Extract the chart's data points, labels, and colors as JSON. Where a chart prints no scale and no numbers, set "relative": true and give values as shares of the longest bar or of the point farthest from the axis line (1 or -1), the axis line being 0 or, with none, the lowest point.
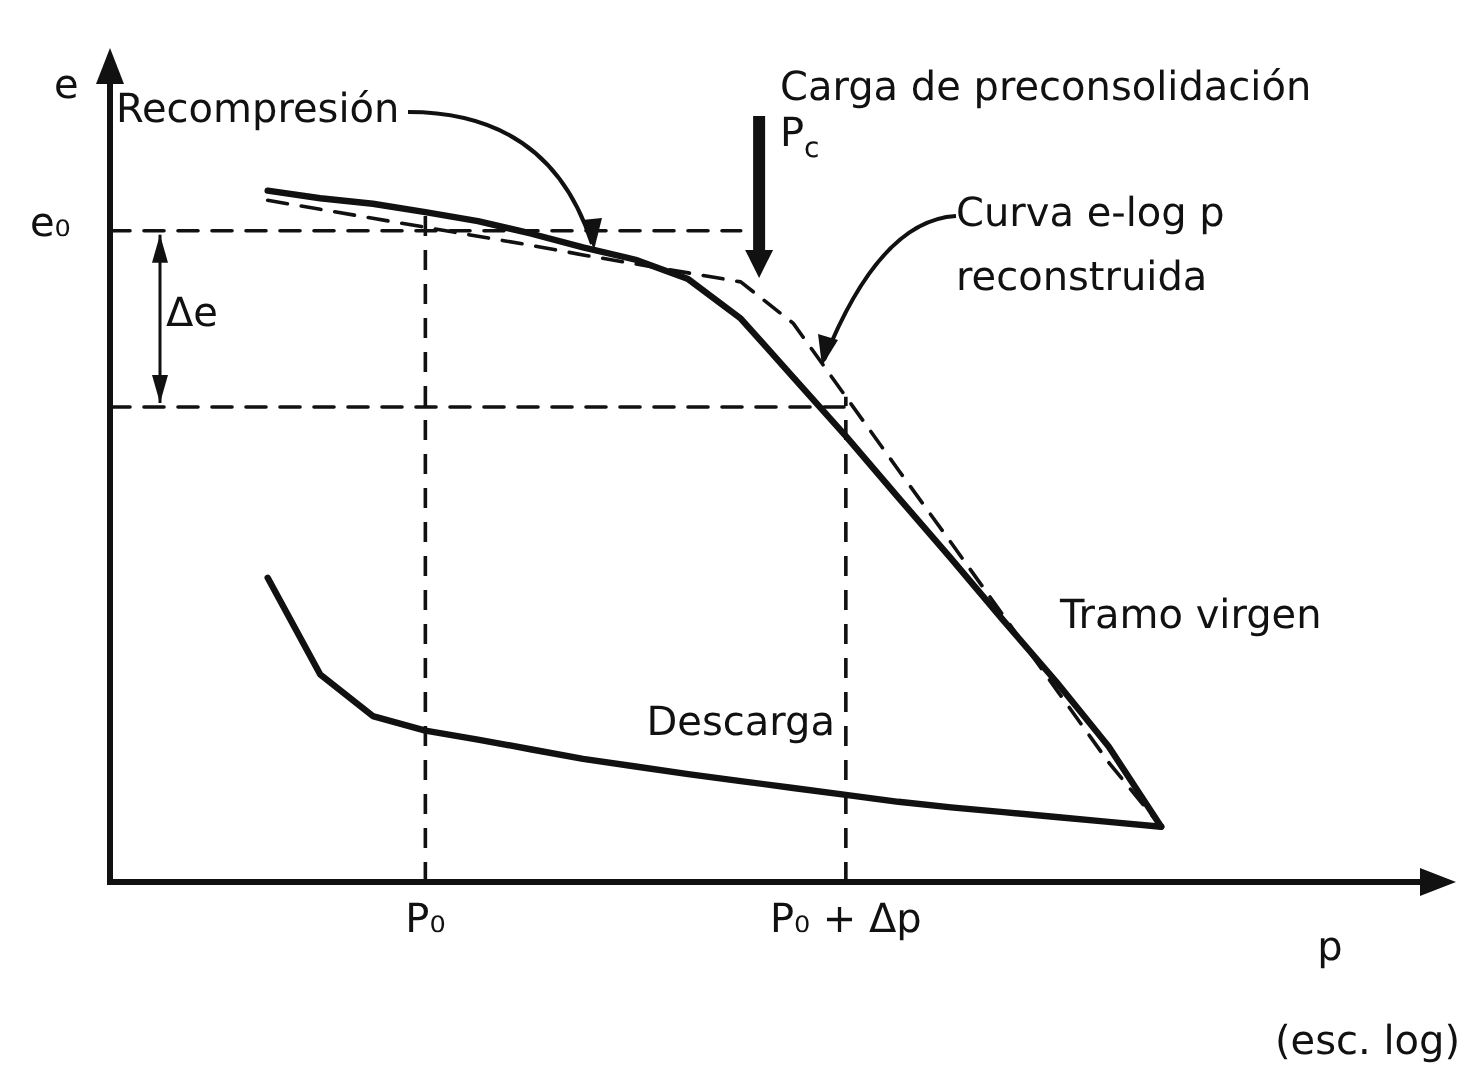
{
  "chart_data": {
    "type": "line",
    "relative": true,
    "ylabel": "e",
    "xlabel": "p",
    "annotations": [
      "Recompresión",
      "Carga de preconsolidación",
      "P$_{c}$",
      "Curva e-log p reconstruida",
      "Tramo virgen",
      "Δe",
      "e₀",
      "(esc. log)"
    ],
    "categories": [
      null,
      null,
      null,
      null,
      null,
      null,
      "P₀",
      null,
      null,
      null,
      null,
      null,
      null,
      null,
      "P₀ + Δp",
      null,
      null,
      null,
      null,
      null,
      null,
      null,
      null,
      null,
      null,
      null
    ],
    "grid": false,
    "legend": false,
    "marker": "none",
    "line_style": "solid",
    "ref_lines": [
      {
        "axis": "x",
        "value": "P₀",
        "line_style": "dashed",
        "color": "#111111"
      },
      {
        "axis": "x",
        "value": "P₀ + Δp",
        "line_style": "dashed",
        "color": "#111111"
      }
    ],
    "series": [
      {
        "color": "#111111",
        "values": [
          null,
          null,
          null,
          1.0,
          0.989,
          0.981,
          0.969,
          0.956,
          0.938,
          0.918,
          0.9,
          0.872,
          0.815,
          0.73,
          0.645,
          0.556,
          0.468,
          0.378,
          0.29,
          0.196,
          0.08,
          null,
          null,
          null,
          null,
          null
        ]
      },
      {
        "name": "Descarga",
        "color": "#111111",
        "values": [
          null,
          null,
          null,
          0.44,
          0.3,
          0.24,
          0.219,
          0.206,
          0.192,
          0.178,
          0.167,
          0.156,
          0.146,
          0.136,
          0.126,
          0.116,
          0.108,
          0.101,
          0.094,
          0.087,
          0.08,
          null,
          null,
          null,
          null,
          null
        ]
      },
      {
        "color": "#111111",
        "line_style": "dashed",
        "values": [
          null,
          null,
          null,
          0.986,
          0.973,
          0.96,
          0.947,
          0.934,
          0.921,
          0.907,
          0.894,
          0.881,
          0.868,
          0.808,
          0.702,
          0.596,
          0.491,
          0.385,
          0.279,
          0.173,
          0.08,
          null,
          null,
          null,
          null,
          null
        ]
      },
      {
        "color": "#111111",
        "line_style": "dashed",
        "values": [
          0.942,
          0.942,
          0.942,
          0.942,
          0.942,
          0.942,
          0.942,
          0.942,
          0.942,
          0.942,
          0.942,
          0.942,
          0.942,
          null,
          null,
          null,
          null,
          null,
          null,
          null,
          null,
          null,
          null,
          null,
          null,
          null
        ]
      },
      {
        "color": "#111111",
        "line_style": "dashed",
        "values": [
          0.687,
          0.687,
          0.687,
          0.687,
          0.687,
          0.687,
          0.687,
          0.687,
          0.687,
          0.687,
          0.687,
          0.687,
          0.687,
          0.687,
          0.687,
          null,
          null,
          null,
          null,
          null,
          null,
          null,
          null,
          null,
          null,
          null
        ]
      }
    ]
  }
}
